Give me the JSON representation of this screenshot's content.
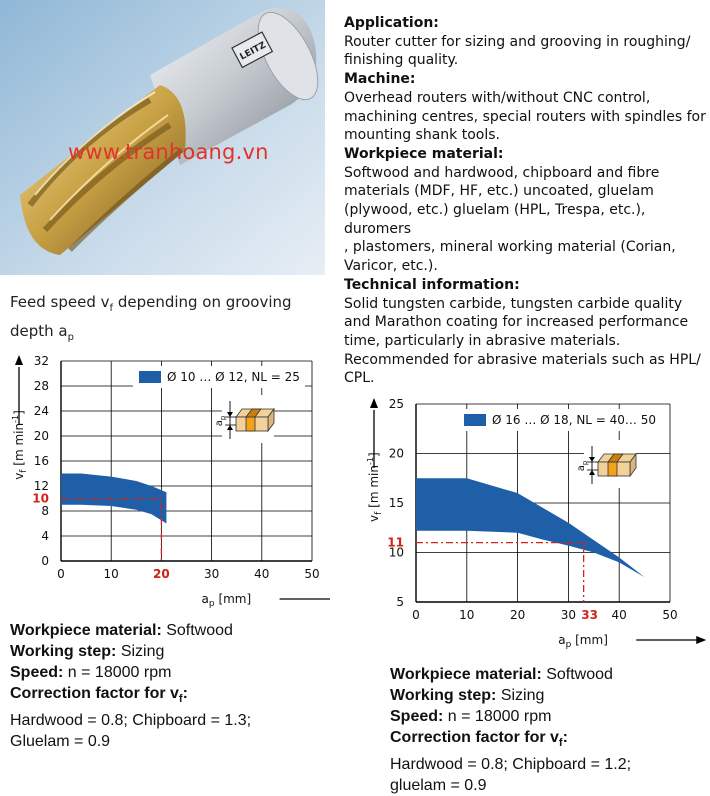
{
  "watermark": "www.tranhoang.vn",
  "tool_logo_text": "LEITZ",
  "spec": {
    "application_h": "Application:",
    "application": "Router cutter for sizing and grooving in roughing/\nfinishing quality.",
    "machine_h": "Machine:",
    "machine": "Overhead routers with/without CNC control,\nmachining centres, special routers with spindles for\nmounting shank tools.",
    "workpiece_h": "Workpiece material:",
    "workpiece": "Softwood and hardwood, chipboard and fibre\nmaterials (MDF, HF, etc.) uncoated, gluelam\n(plywood, etc.) gluelam (HPL, Trespa, etc.), duromers\n, plastomers, mineral working material (Corian,\nVaricor, etc.).",
    "technical_h": "Technical information:",
    "technical": "Solid tungsten carbide, tungsten carbide quality\nand Marathon coating for increased performance\ntime, particularly in abrasive materials.\nRecommended for abrasive materials such as HPL/\nCPL."
  },
  "caption": {
    "line1_a": "Feed speed v",
    "line1_sub": "f",
    "line1_b": " depending on grooving",
    "line2_a": "depth a",
    "line2_sub": "p"
  },
  "colors": {
    "band": "#1f5fa8",
    "highlight": "#d2231a",
    "wood": "#f2d29a",
    "groove": "#f3a21c"
  },
  "chart_data": [
    {
      "type": "area",
      "legend": "Ø 10 … Ø 12, NL = 25",
      "legend_position": "top-right",
      "grid": true,
      "xlim": [
        0,
        50
      ],
      "ylim": [
        0,
        32
      ],
      "x_ticks": [
        "0",
        "10",
        "20",
        "30",
        "40",
        "50"
      ],
      "y_ticks": [
        "0",
        "4",
        "8",
        "12",
        "16",
        "20",
        "24",
        "28",
        "32"
      ],
      "xlabel_a": "a",
      "xlabel_sub": "p",
      "xlabel_b": " [mm]",
      "ylabel_a": "v",
      "ylabel_sub": "f",
      "ylabel_b": " [m min",
      "ylabel_sup": "-1",
      "ylabel_c": "]",
      "upper": {
        "x": [
          0,
          4,
          10,
          15,
          18,
          21
        ],
        "y": [
          14,
          14,
          13.5,
          12.8,
          12,
          11
        ]
      },
      "lower": {
        "x": [
          0,
          4,
          10,
          15,
          18,
          21
        ],
        "y": [
          9,
          9,
          8.8,
          8.2,
          7.5,
          6
        ]
      },
      "highlight": {
        "x": 20,
        "y": 10,
        "x_label": "20",
        "y_label": "10"
      },
      "notes": {
        "workpiece_h": "Workpiece material:",
        "workpiece": " Softwood",
        "step_h": "Working step:",
        "step": " Sizing",
        "speed_h": "Speed:",
        "speed": " n = 18000 rpm",
        "corr_h_a": "Correction factor for v",
        "corr_h_sub": "f",
        "corr_h_b": ":",
        "corr_line1": "Hardwood = 0.8; Chipboard = 1.3;",
        "corr_line2": "Gluelam = 0.9"
      }
    },
    {
      "type": "area",
      "legend": "Ø 16 … Ø 18, NL = 40… 50",
      "legend_position": "top-right",
      "grid": true,
      "xlim": [
        0,
        50
      ],
      "ylim": [
        5,
        25
      ],
      "x_ticks": [
        "0",
        "10",
        "20",
        "30",
        "40",
        "50"
      ],
      "y_ticks": [
        "5",
        "10",
        "15",
        "20",
        "25"
      ],
      "xlabel_a": "a",
      "xlabel_sub": "p",
      "xlabel_b": " [mm]",
      "ylabel_a": "v",
      "ylabel_sub": "f",
      "ylabel_b": " [m min",
      "ylabel_sup": "-1",
      "ylabel_c": "]",
      "upper": {
        "x": [
          0,
          10,
          20,
          30,
          40,
          45
        ],
        "y": [
          17.5,
          17.5,
          16,
          13,
          9.5,
          7.5
        ]
      },
      "lower": {
        "x": [
          0,
          10,
          20,
          25,
          30,
          35,
          40,
          45
        ],
        "y": [
          12.2,
          12.2,
          12,
          11.3,
          10.7,
          10,
          9,
          7.5
        ]
      },
      "highlight": {
        "x": 33,
        "y": 11,
        "x_label": "33",
        "y_label": "11"
      },
      "notes": {
        "workpiece_h": "Workpiece material:",
        "workpiece": " Softwood",
        "step_h": "Working step:",
        "step": " Sizing",
        "speed_h": "Speed:",
        "speed": " n = 18000 rpm",
        "corr_h_a": "Correction factor for v",
        "corr_h_sub": "f",
        "corr_h_b": ":",
        "corr_line1": "Hardwood = 0.8; Chipboard = 1.2;",
        "corr_line2": "gluelam  = 0.9"
      }
    }
  ]
}
